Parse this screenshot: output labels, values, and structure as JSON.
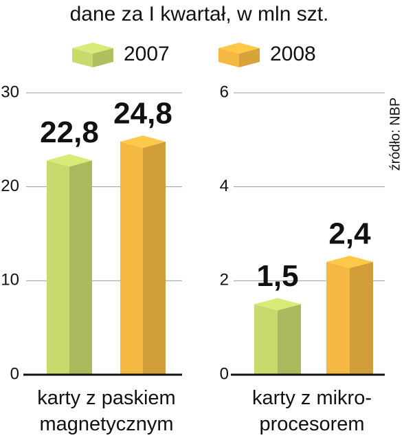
{
  "chart_data": [
    {
      "type": "bar3d",
      "title": "dane za I kwartał, w mln szt.",
      "categories": [
        "karty z paskiem\nmagnetycznym"
      ],
      "series": [
        {
          "name": "2007",
          "color": "#c8da6e",
          "values": [
            22.8
          ],
          "value_labels": [
            "22,8"
          ]
        },
        {
          "name": "2008",
          "color": "#f5b943",
          "values": [
            24.8
          ],
          "value_labels": [
            "24,8"
          ]
        }
      ],
      "ylim": [
        0,
        30
      ],
      "yticks": [
        0,
        10,
        20,
        30
      ],
      "grid": true
    },
    {
      "type": "bar3d",
      "source": "źródło: NBP",
      "categories": [
        "karty z mikro-\nprocesorem"
      ],
      "series": [
        {
          "name": "2007",
          "color": "#c8da6e",
          "values": [
            1.5
          ],
          "value_labels": [
            "1,5"
          ]
        },
        {
          "name": "2008",
          "color": "#f5b943",
          "values": [
            2.4
          ],
          "value_labels": [
            "2,4"
          ]
        }
      ],
      "ylim": [
        0,
        6
      ],
      "yticks": [
        0,
        2,
        4,
        6
      ],
      "grid": true
    }
  ]
}
